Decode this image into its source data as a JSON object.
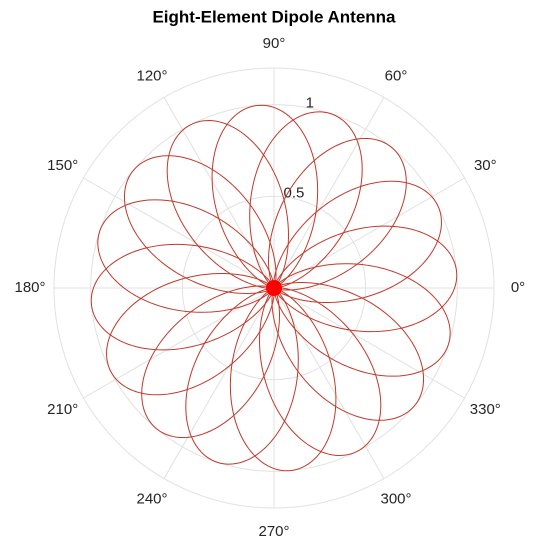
{
  "chart_data": {
    "type": "polar",
    "title": "Eight-Element Dipole Antenna",
    "color": "#c0392b",
    "lobes": {
      "directions": [
        5,
        27,
        50,
        72,
        95,
        117,
        140,
        162,
        185,
        207,
        230,
        252,
        275,
        297,
        320,
        342
      ],
      "peaks": [
        1,
        1,
        1,
        1,
        1,
        1,
        1,
        1,
        1,
        1,
        1,
        1,
        1,
        1,
        1,
        1
      ]
    },
    "rlim": [
      0,
      1.2
    ],
    "rticks": [
      0.5,
      1
    ],
    "thetaticks": [
      {
        "value": 0,
        "label": "0°"
      },
      {
        "value": 30,
        "label": "30°"
      },
      {
        "value": 60,
        "label": "60°"
      },
      {
        "value": 90,
        "label": "90°"
      },
      {
        "value": 120,
        "label": "120°"
      },
      {
        "value": 150,
        "label": "150°"
      },
      {
        "value": 180,
        "label": "180°"
      },
      {
        "value": 210,
        "label": "210°"
      },
      {
        "value": 240,
        "label": "240°"
      },
      {
        "value": 270,
        "label": "270°"
      },
      {
        "value": 300,
        "label": "300°"
      },
      {
        "value": 330,
        "label": "330°"
      }
    ],
    "grid": true
  }
}
